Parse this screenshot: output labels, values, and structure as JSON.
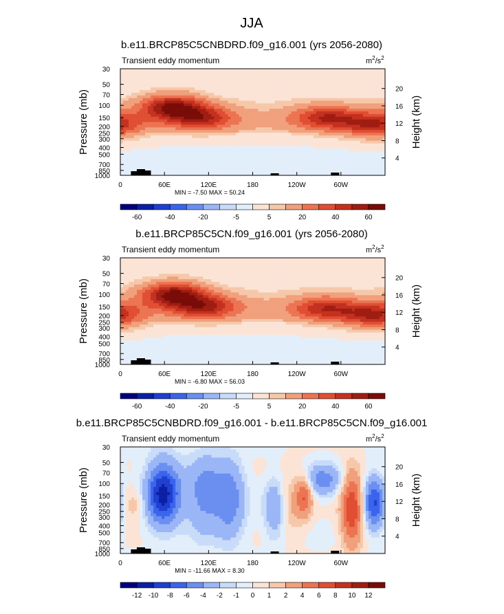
{
  "title": "JJA",
  "chart_data": [
    {
      "type": "heatmap",
      "title": "b.e11.BRCP85C5CNBDRD.f09_g16.001 (yrs 2056-2080)",
      "subtitle_left": "Transient eddy momentum",
      "units": "m²/s²",
      "units_base": "m",
      "units_mid": "/s",
      "units_sup": "2",
      "ylabel": "Pressure (mb)",
      "ylabel_right": "Height (km)",
      "x_ticks": [
        "0",
        "60E",
        "120E",
        "180",
        "120W",
        "60W"
      ],
      "y_ticks": [
        "30",
        "50",
        "70",
        "100",
        "150",
        "200",
        "250",
        "300",
        "400",
        "500",
        "700",
        "850",
        "1000"
      ],
      "height_ticks": [
        "20",
        "16",
        "12",
        "8",
        "4"
      ],
      "stats": "MIN = -7.50  MAX = 50.24",
      "colorbar_labels": [
        "-60",
        "-40",
        "-20",
        "-5",
        "5",
        "20",
        "40",
        "60"
      ],
      "jets": [
        {
          "lon": 70,
          "p": 105,
          "peak": 55
        },
        {
          "lon": 110,
          "p": 150,
          "peak": 38
        },
        {
          "lon": 280,
          "p": 150,
          "peak": 38
        },
        {
          "lon": 345,
          "p": 190,
          "peak": 40
        }
      ]
    },
    {
      "type": "heatmap",
      "title": "b.e11.BRCP85C5CN.f09_g16.001 (yrs 2056-2080)",
      "subtitle_left": "Transient eddy momentum",
      "units": "m²/s²",
      "units_base": "m",
      "units_mid": "/s",
      "units_sup": "2",
      "ylabel": "Pressure (mb)",
      "ylabel_right": "Height (km)",
      "x_ticks": [
        "0",
        "60E",
        "120E",
        "180",
        "120W",
        "60W"
      ],
      "y_ticks": [
        "30",
        "50",
        "70",
        "100",
        "150",
        "200",
        "250",
        "300",
        "400",
        "500",
        "700",
        "850",
        "1000"
      ],
      "height_ticks": [
        "20",
        "16",
        "12",
        "8",
        "4"
      ],
      "stats": "MIN = -6.80  MAX = 56.03",
      "colorbar_labels": [
        "-60",
        "-40",
        "-20",
        "-5",
        "5",
        "20",
        "40",
        "60"
      ],
      "jets": [
        {
          "lon": 72,
          "p": 100,
          "peak": 58
        },
        {
          "lon": 115,
          "p": 150,
          "peak": 40
        },
        {
          "lon": 278,
          "p": 160,
          "peak": 36
        },
        {
          "lon": 345,
          "p": 200,
          "peak": 42
        }
      ]
    },
    {
      "type": "heatmap",
      "title": "b.e11.BRCP85C5CNBDRD.f09_g16.001 - b.e11.BRCP85C5CN.f09_g16.001",
      "subtitle_left": "Transient eddy momentum",
      "units": "m²/s²",
      "units_base": "m",
      "units_mid": "/s",
      "units_sup": "2",
      "ylabel": "Pressure (mb)",
      "ylabel_right": "Height (km)",
      "x_ticks": [
        "0",
        "60E",
        "120E",
        "180",
        "120W",
        "60W"
      ],
      "y_ticks": [
        "30",
        "50",
        "70",
        "100",
        "150",
        "200",
        "250",
        "300",
        "400",
        "500",
        "700",
        "850",
        "1000"
      ],
      "height_ticks": [
        "20",
        "16",
        "12",
        "8",
        "4"
      ],
      "stats": "MIN = -11.66  MAX =  8.30",
      "colorbar_labels": [
        "-12",
        "-10",
        "-8",
        "-6",
        "-4",
        "-2",
        "-1",
        "0",
        "1",
        "2",
        "4",
        "6",
        "8",
        "10",
        "12"
      ],
      "blobs": [
        {
          "lon": 58,
          "p": 140,
          "amp": -11,
          "w": 16,
          "h": 0.12
        },
        {
          "lon": 115,
          "p": 140,
          "amp": -5,
          "w": 18,
          "h": 0.15
        },
        {
          "lon": 150,
          "p": 170,
          "amp": -5,
          "w": 14,
          "h": 0.15
        },
        {
          "lon": 210,
          "p": 230,
          "amp": -4,
          "w": 10,
          "h": 0.12
        },
        {
          "lon": 250,
          "p": 150,
          "amp": 6,
          "w": 8,
          "h": 0.08
        },
        {
          "lon": 275,
          "p": 90,
          "amp": -5,
          "w": 18,
          "h": 0.06
        },
        {
          "lon": 315,
          "p": 230,
          "amp": 8,
          "w": 10,
          "h": 0.14
        },
        {
          "lon": 345,
          "p": 190,
          "amp": -8,
          "w": 10,
          "h": 0.1
        },
        {
          "lon": 20,
          "p": 200,
          "amp": 2,
          "w": 12,
          "h": 0.06
        },
        {
          "lon": 230,
          "p": 200,
          "amp": 2,
          "w": 12,
          "h": 0.12
        }
      ]
    }
  ]
}
